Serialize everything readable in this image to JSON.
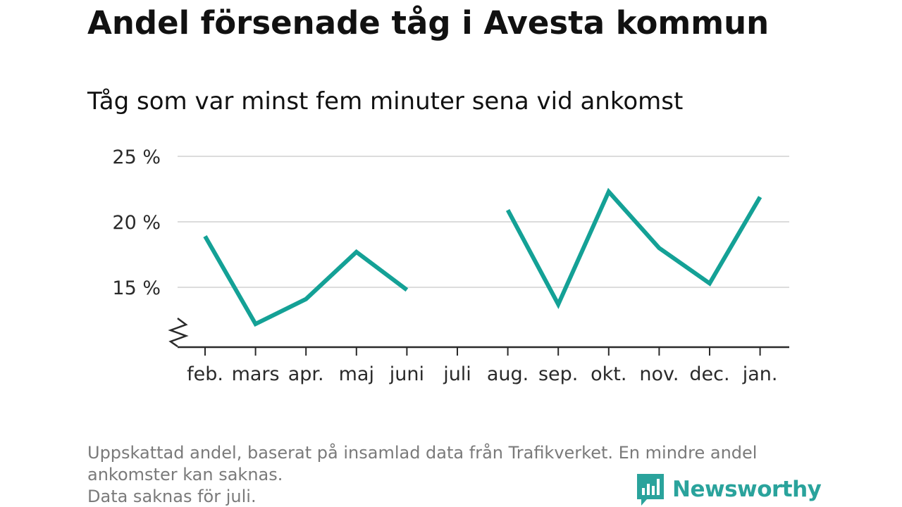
{
  "title": "Andel försenade tåg i Avesta kommun",
  "subtitle": "Tåg som var minst fem minuter sena vid ankomst",
  "footnote": {
    "line1": "Uppskattad andel, baserat på insamlad data från Trafikverket. En mindre andel",
    "line2": "ankomster kan saknas.",
    "line3": "Data saknas för juli."
  },
  "logo": {
    "text": "Newsworthy",
    "icon": "bar-chart-speech-bubble-icon",
    "color": "#2aa39c"
  },
  "chart_data": {
    "type": "line",
    "categories": [
      "feb.",
      "mars",
      "apr.",
      "maj",
      "juni",
      "juli",
      "aug.",
      "sep.",
      "okt.",
      "nov.",
      "dec.",
      "jan."
    ],
    "series": [
      {
        "values": [
          18.9,
          12.2,
          14.1,
          17.7,
          14.8,
          null,
          20.9,
          13.7,
          22.3,
          18.0,
          15.3,
          21.9
        ],
        "color": "#14a196"
      }
    ],
    "y_ticks": [
      15,
      20,
      25
    ],
    "y_tick_labels": [
      "15 %",
      "20 %",
      "25 %"
    ],
    "ylim": [
      10.5,
      25
    ],
    "y_axis_broken": true,
    "grid": true,
    "xlabel": "",
    "ylabel": ""
  }
}
